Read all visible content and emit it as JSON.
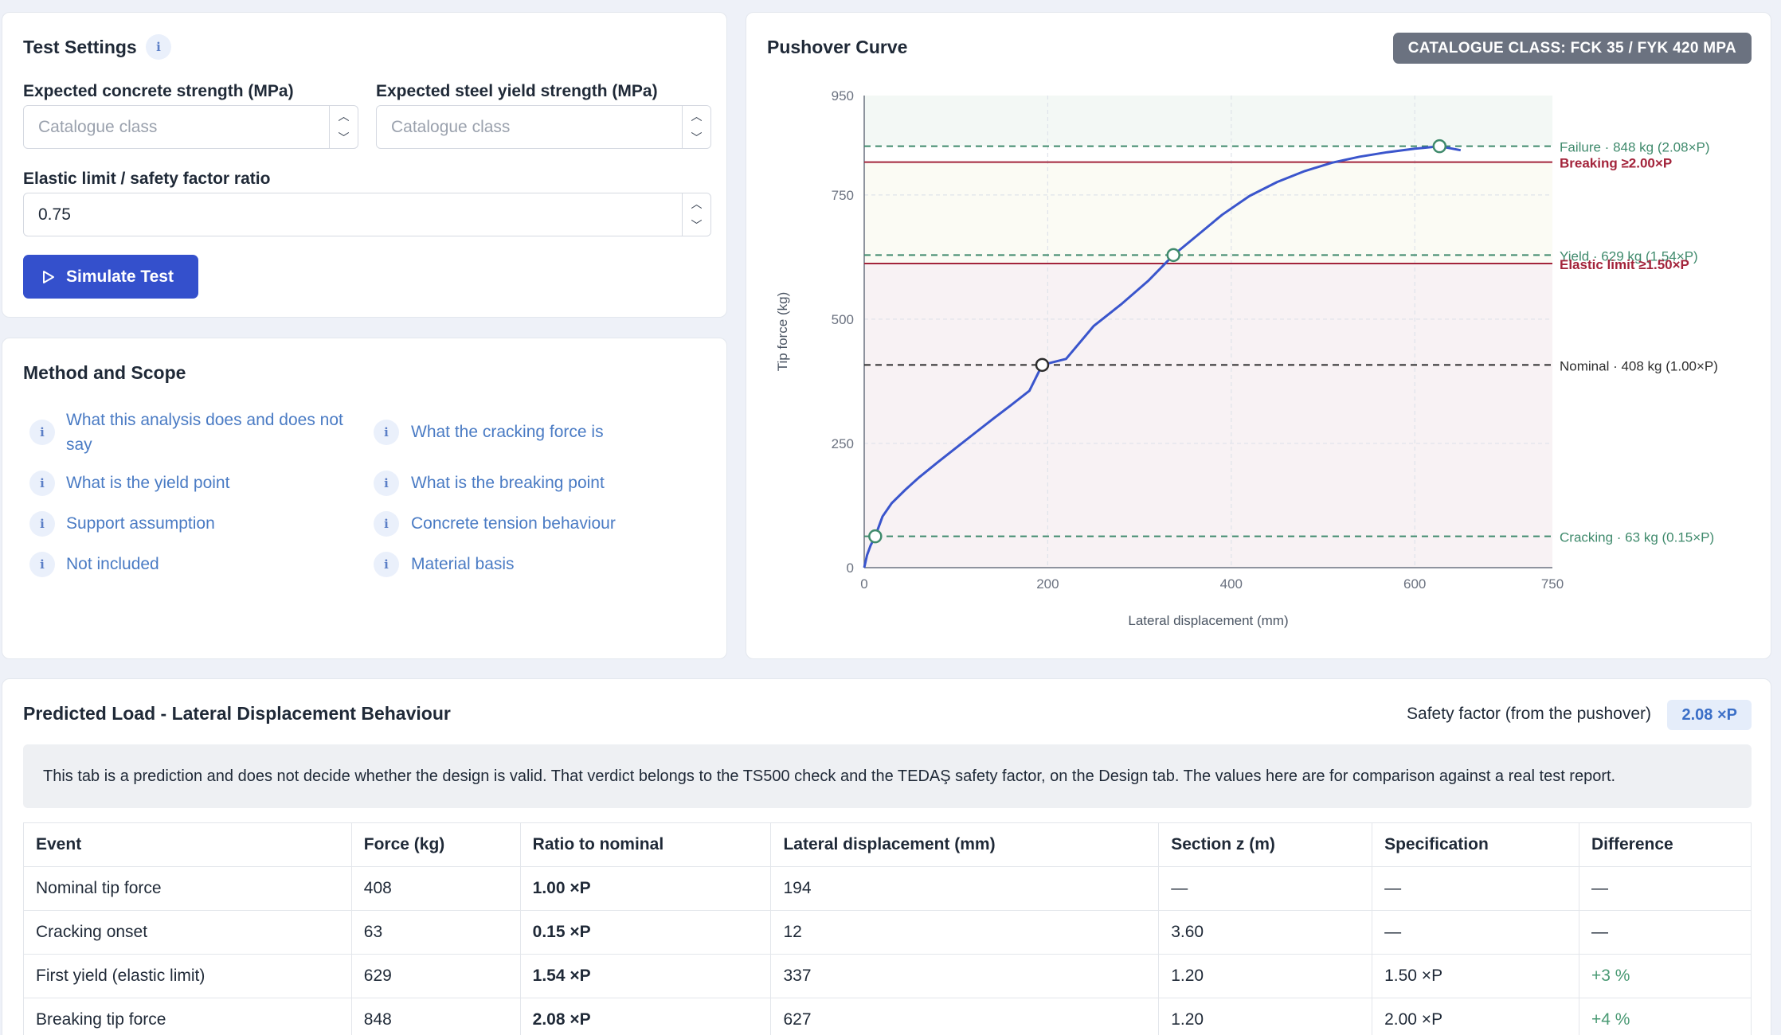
{
  "settings": {
    "title": "Test Settings",
    "concrete_label": "Expected concrete strength (MPa)",
    "concrete_placeholder": "Catalogue class",
    "concrete_value": "",
    "steel_label": "Expected steel yield strength (MPa)",
    "steel_placeholder": "Catalogue class",
    "steel_value": "",
    "ratio_label": "Elastic limit / safety factor ratio",
    "ratio_value": "0.75",
    "simulate_label": "Simulate Test",
    "info_glyph": "i"
  },
  "method": {
    "title": "Method and Scope",
    "links": [
      {
        "label": "What this analysis does and does not say"
      },
      {
        "label": "What the cracking force is"
      },
      {
        "label": "What is the yield point"
      },
      {
        "label": "What is the breaking point"
      },
      {
        "label": "Support assumption"
      },
      {
        "label": "Concrete tension behaviour"
      },
      {
        "label": "Not included"
      },
      {
        "label": "Material basis"
      }
    ]
  },
  "chart": {
    "title": "Pushover Curve",
    "badge": "CATALOGUE CLASS: FCK 35 / FYK 420 MPA"
  },
  "chart_data": {
    "type": "line",
    "title": "Pushover Curve",
    "xlabel": "Lateral displacement (mm)",
    "ylabel": "Tip force (kg)",
    "xlim": [
      0,
      750
    ],
    "ylim": [
      0,
      950
    ],
    "xticks": [
      0,
      200,
      400,
      600,
      750
    ],
    "yticks": [
      0,
      250,
      500,
      750,
      950
    ],
    "grid": true,
    "series": [
      {
        "x": [
          0,
          3,
          7,
          12,
          20,
          30,
          45,
          60,
          80,
          100,
          120,
          140,
          160,
          180,
          194,
          220,
          250,
          280,
          310,
          337,
          360,
          390,
          420,
          450,
          480,
          510,
          540,
          570,
          600,
          627,
          650
        ],
        "y": [
          0,
          25,
          45,
          63,
          103,
          130,
          157,
          182,
          212,
          241,
          270,
          299,
          327,
          356,
          408,
          420,
          486,
          530,
          578,
          629,
          664,
          710,
          748,
          776,
          798,
          815,
          827,
          836,
          843,
          848,
          840
        ]
      }
    ],
    "bands": [
      {
        "from": 848,
        "to": 950,
        "color": "#f3f8f5"
      },
      {
        "from": 612,
        "to": 816,
        "color": "#fbfbf4"
      },
      {
        "from": 0,
        "to": 612,
        "color": "#f8f2f4"
      }
    ],
    "reference_lines": [
      {
        "y": 848,
        "style": "dashed",
        "color": "#3f8a6c",
        "label": "Failure · 848 kg (2.08×P)"
      },
      {
        "y": 816,
        "style": "solid",
        "color": "#a3243b",
        "label": "Breaking ≥2.00×P"
      },
      {
        "y": 629,
        "style": "dashed",
        "color": "#3f8a6c",
        "label": "Yield · 629 kg (1.54×P)"
      },
      {
        "y": 612,
        "style": "solid",
        "color": "#a3243b",
        "label": "Elastic limit ≥1.50×P"
      },
      {
        "y": 408,
        "style": "dashed",
        "color": "#2d2d2d",
        "label": "Nominal · 408 kg (1.00×P)"
      },
      {
        "y": 63,
        "style": "dashed",
        "color": "#3f8a6c",
        "label": "Cracking · 63 kg (0.15×P)"
      }
    ],
    "markers": [
      {
        "x": 12,
        "y": 63,
        "fill": "#ffffff",
        "stroke": "#3f8a6c"
      },
      {
        "x": 194,
        "y": 408,
        "fill": "#ffffff",
        "stroke": "#2d2d2d"
      },
      {
        "x": 337,
        "y": 629,
        "fill": "#ffffff",
        "stroke": "#3f8a6c"
      },
      {
        "x": 627,
        "y": 848,
        "fill": "#ffffff",
        "stroke": "#3f8a6c"
      }
    ],
    "line_color": "#3a55cc"
  },
  "prediction": {
    "title": "Predicted Load - Lateral Displacement Behaviour",
    "safety_label": "Safety factor (from the pushover)",
    "safety_value": "2.08 ×P",
    "notice": "This tab is a prediction and does not decide whether the design is valid. That verdict belongs to the TS500 check and the TEDAŞ safety factor, on the Design tab. The values here are for comparison against a real test report.",
    "columns": [
      "Event",
      "Force (kg)",
      "Ratio to nominal",
      "Lateral displacement (mm)",
      "Section z (m)",
      "Specification",
      "Difference"
    ],
    "rows": [
      [
        "Nominal tip force",
        "408",
        "1.00 ×P",
        "194",
        "—",
        "—",
        "—"
      ],
      [
        "Cracking onset",
        "63",
        "0.15 ×P",
        "12",
        "3.60",
        "—",
        "—"
      ],
      [
        "First yield (elastic limit)",
        "629",
        "1.54 ×P",
        "337",
        "1.20",
        "1.50 ×P",
        "+3 %"
      ],
      [
        "Breaking tip force",
        "848",
        "2.08 ×P",
        "627",
        "1.20",
        "2.00 ×P",
        "+4 %"
      ]
    ]
  }
}
